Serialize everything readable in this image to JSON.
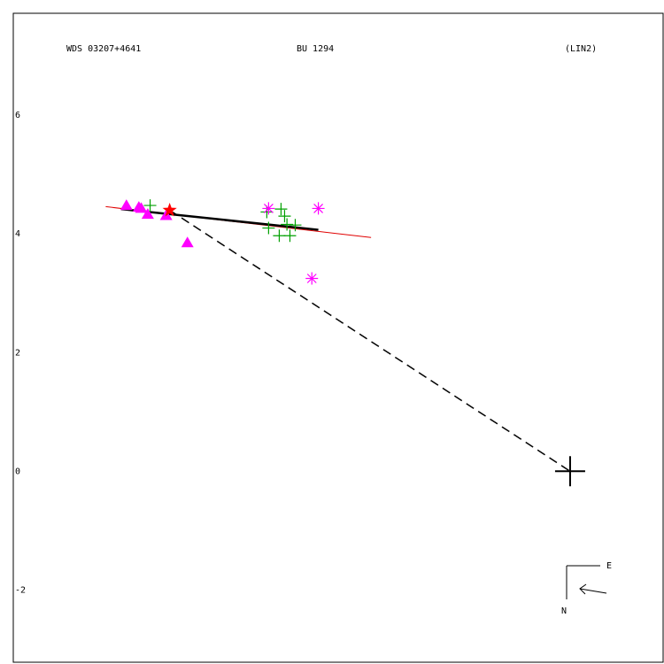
{
  "chart_data": {
    "type": "scatter",
    "header": [
      "WDS 03207+4641",
      "BU 1294",
      "(LIN2)"
    ],
    "compass": {
      "east": "E",
      "north": "N"
    },
    "xlim": [
      9.4,
      -1.57
    ],
    "ylim": [
      -3.22,
      7.72
    ],
    "yticks": [
      -2,
      0,
      2,
      4,
      6
    ],
    "series": [
      {
        "marker": "triangle",
        "color": "#ff00ff",
        "x": [
          7.49,
          7.28,
          7.24,
          7.13,
          6.82,
          6.46
        ],
        "y": [
          4.48,
          4.45,
          4.43,
          4.33,
          4.31,
          3.85
        ]
      },
      {
        "marker": "plus",
        "color": "#00a000",
        "x": [
          7.09,
          5.12,
          5.09,
          4.88,
          4.82,
          4.78,
          4.91,
          4.73,
          4.64
        ],
        "y": [
          4.48,
          4.37,
          4.1,
          4.42,
          4.3,
          4.16,
          3.97,
          3.97,
          4.15
        ]
      },
      {
        "marker": "asterisk",
        "color": "#ff00ff",
        "x": [
          5.09,
          4.25,
          4.36
        ],
        "y": [
          4.43,
          4.43,
          3.25
        ]
      },
      {
        "marker": "star",
        "color": "#ff0000",
        "x": [
          6.76
        ],
        "y": [
          4.4
        ]
      },
      {
        "marker": "cross",
        "color": "#000000",
        "x": [
          0
        ],
        "y": [
          0
        ]
      }
    ],
    "lines": [
      {
        "color": "#e00000",
        "style": "solid",
        "width": 1,
        "x": [
          7.84,
          3.36
        ],
        "y": [
          4.46,
          3.94
        ]
      },
      {
        "color": "#000000",
        "style": "solid",
        "width": 2.5,
        "x": [
          7.58,
          4.25
        ],
        "y": [
          4.42,
          4.07
        ]
      },
      {
        "color": "#000000",
        "style": "dashed",
        "width": 1.5,
        "x": [
          6.76,
          0
        ],
        "y": [
          4.4,
          0
        ]
      }
    ]
  }
}
